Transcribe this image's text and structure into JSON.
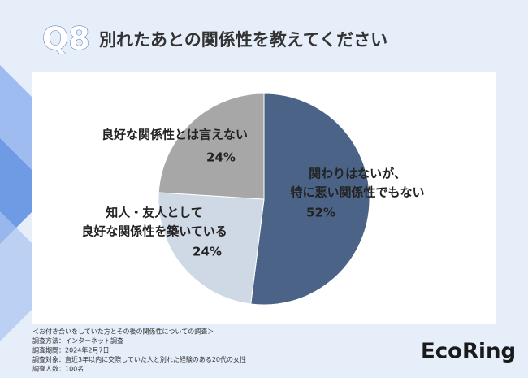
{
  "question": "Q8",
  "chart_data": {
    "type": "pie",
    "title": "別れたあとの関係性を教えてください",
    "categories": [
      [
        "関わりはないが、",
        "特に悪い関係性でもない"
      ],
      [
        "知人・友人として",
        "良好な関係性を築いている"
      ],
      [
        "良好な関係性とは言えない"
      ]
    ],
    "values": [
      52,
      24,
      24
    ],
    "value_labels": [
      "52%",
      "24%",
      "24%"
    ],
    "colors": [
      "#4b6386",
      "#cfd8e5",
      "#a7a7a7"
    ]
  },
  "notes": [
    "＜お付き合いをしていた方とその後の関係性についての調査＞",
    "調査方法：インターネット調査",
    "調査期間：2024年2月7日",
    "調査対象：直近3年以内に交際していた人と別れた経験のある20代の女性",
    "調査人数：100名"
  ],
  "logo": "EcoRing"
}
